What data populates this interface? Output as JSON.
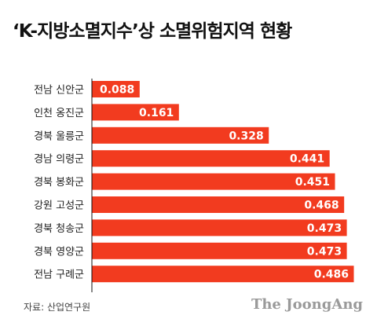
{
  "chart_data": {
    "type": "bar",
    "orientation": "horizontal",
    "title": "‘K-지방소멸지수’상 소멸위험지역 현황",
    "categories": [
      "전남 신안군",
      "인천 옹진군",
      "경북 울릉군",
      "경남 의령군",
      "경북 봉화군",
      "강원 고성군",
      "경북 청송군",
      "경북 영양군",
      "전남 구례군"
    ],
    "values": [
      0.088,
      0.161,
      0.328,
      0.441,
      0.451,
      0.468,
      0.473,
      0.473,
      0.486
    ],
    "value_labels": [
      "0.088",
      "0.161",
      "0.328",
      "0.441",
      "0.451",
      "0.468",
      "0.473",
      "0.473",
      "0.486"
    ],
    "xlim": [
      0,
      0.486
    ],
    "grid": false,
    "bar_color": "#f23b1f"
  },
  "footer": {
    "source": "자료: 산업연구원",
    "brand": "The JoongAng"
  }
}
